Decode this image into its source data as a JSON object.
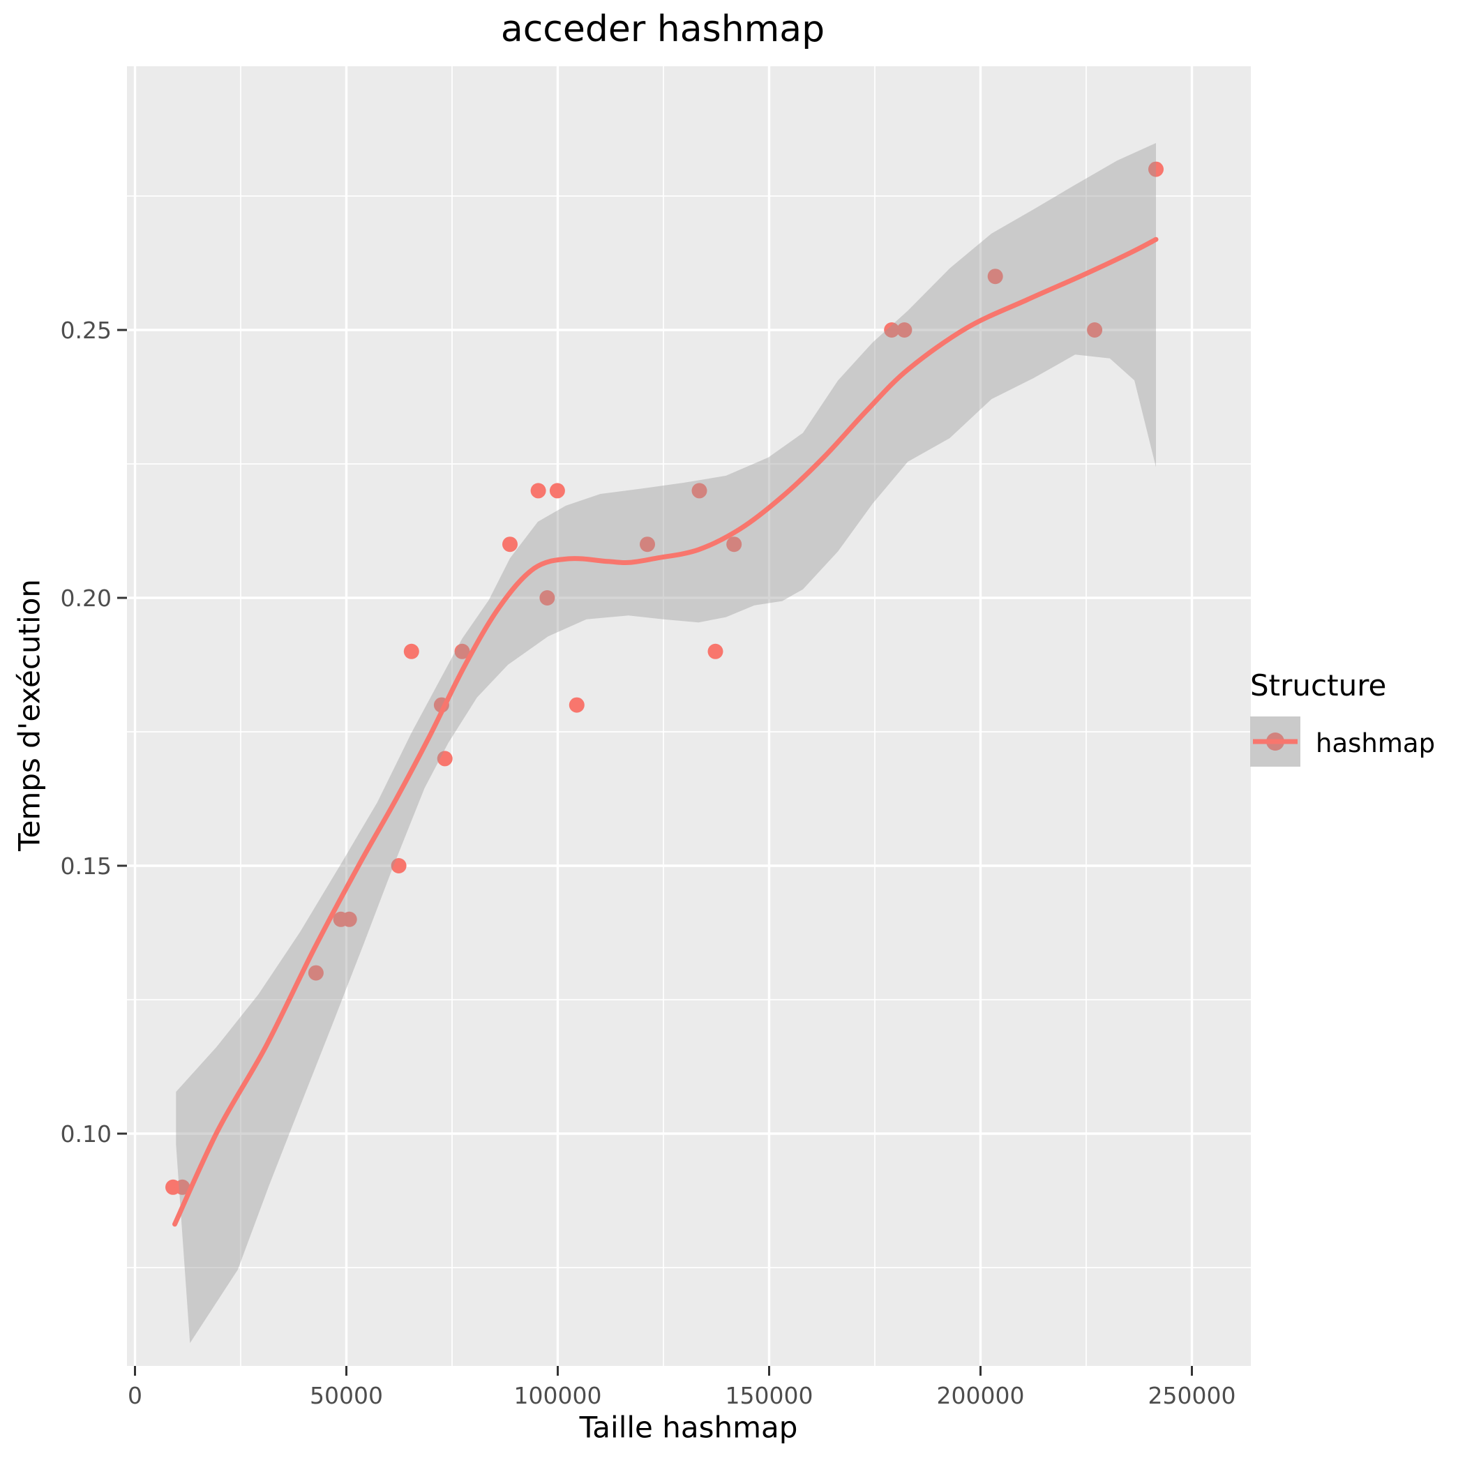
{
  "title": "acceder hashmap",
  "legend": {
    "title": "Structure",
    "items": [
      {
        "label": "hashmap",
        "color": "#F8766D"
      }
    ]
  },
  "colors": {
    "accent": "#F8766D",
    "panel_bg": "#EBEBEB",
    "grid": "#FFFFFF",
    "ribbon": "rgba(153,153,153,0.4)",
    "tick_label": "#4D4D4D",
    "tick_mark": "#333333",
    "key_bg": "#EBEBEB",
    "text": "#000000"
  },
  "chart_data": {
    "type": "scatter",
    "title": "acceder hashmap",
    "xlabel": "Taille hashmap",
    "ylabel": "Temps d'exécution",
    "xlim": [
      -1900,
      264000
    ],
    "ylim": [
      0.057,
      0.299
    ],
    "grid": "on",
    "legend_position": "right",
    "x_ticks": [
      {
        "v": 0,
        "l": "0"
      },
      {
        "v": 50000,
        "l": "50000"
      },
      {
        "v": 100000,
        "l": "100000"
      },
      {
        "v": 150000,
        "l": "150000"
      },
      {
        "v": 200000,
        "l": "200000"
      },
      {
        "v": 250000,
        "l": "250000"
      }
    ],
    "y_ticks": [
      {
        "v": 0.1,
        "l": "0.10"
      },
      {
        "v": 0.15,
        "l": "0.15"
      },
      {
        "v": 0.2,
        "l": "0.20"
      },
      {
        "v": 0.25,
        "l": "0.25"
      }
    ],
    "x_minor": [
      25000,
      75000,
      125000,
      175000,
      225000
    ],
    "y_minor": [
      0.075,
      0.125,
      0.175,
      0.225,
      0.275
    ],
    "series": [
      {
        "name": "hashmap",
        "color": "#F8766D",
        "points": [
          [
            9000,
            0.09
          ],
          [
            11200,
            0.09
          ],
          [
            42800,
            0.13
          ],
          [
            48700,
            0.14
          ],
          [
            50700,
            0.14
          ],
          [
            62400,
            0.15
          ],
          [
            65400,
            0.19
          ],
          [
            72500,
            0.18
          ],
          [
            73300,
            0.17
          ],
          [
            77400,
            0.19
          ],
          [
            88700,
            0.21
          ],
          [
            95400,
            0.22
          ],
          [
            97500,
            0.2
          ],
          [
            99900,
            0.22
          ],
          [
            104500,
            0.18
          ],
          [
            121200,
            0.21
          ],
          [
            133500,
            0.22
          ],
          [
            137300,
            0.19
          ],
          [
            141700,
            0.21
          ],
          [
            179000,
            0.25
          ],
          [
            182000,
            0.25
          ],
          [
            203500,
            0.26
          ],
          [
            227000,
            0.25
          ],
          [
            241500,
            0.28
          ]
        ]
      }
    ],
    "smooth": {
      "method": "loess",
      "line": [
        [
          9400,
          0.0831
        ],
        [
          19600,
          0.1006
        ],
        [
          30900,
          0.1162
        ],
        [
          42400,
          0.1345
        ],
        [
          52800,
          0.1499
        ],
        [
          61400,
          0.1619
        ],
        [
          69700,
          0.1742
        ],
        [
          77900,
          0.1872
        ],
        [
          86200,
          0.1983
        ],
        [
          94400,
          0.2055
        ],
        [
          102700,
          0.2073
        ],
        [
          111800,
          0.2068
        ],
        [
          117000,
          0.2066
        ],
        [
          123300,
          0.2074
        ],
        [
          133300,
          0.209
        ],
        [
          143200,
          0.2129
        ],
        [
          153100,
          0.2189
        ],
        [
          163000,
          0.2263
        ],
        [
          172900,
          0.2348
        ],
        [
          182800,
          0.2426
        ],
        [
          196800,
          0.2504
        ],
        [
          210900,
          0.2556
        ],
        [
          224100,
          0.2602
        ],
        [
          235700,
          0.2645
        ],
        [
          241500,
          0.2669
        ]
      ],
      "ribbon": [
        [
          9700,
          0.1078
        ],
        [
          19300,
          0.1162
        ],
        [
          29200,
          0.126
        ],
        [
          39100,
          0.1377
        ],
        [
          49000,
          0.1507
        ],
        [
          57300,
          0.1618
        ],
        [
          65400,
          0.1748
        ],
        [
          77400,
          0.1924
        ],
        [
          83700,
          0.1996
        ],
        [
          88700,
          0.2074
        ],
        [
          95300,
          0.2142
        ],
        [
          101900,
          0.2172
        ],
        [
          110100,
          0.2194
        ],
        [
          120000,
          0.2204
        ],
        [
          129900,
          0.2215
        ],
        [
          139800,
          0.2228
        ],
        [
          149800,
          0.2262
        ],
        [
          158000,
          0.2308
        ],
        [
          166300,
          0.2406
        ],
        [
          174500,
          0.2477
        ],
        [
          182800,
          0.2536
        ],
        [
          192700,
          0.2615
        ],
        [
          202600,
          0.268
        ],
        [
          212500,
          0.2725
        ],
        [
          222400,
          0.2771
        ],
        [
          232300,
          0.2816
        ],
        [
          241500,
          0.2849
        ],
        [
          241500,
          0.2244
        ],
        [
          236400,
          0.2406
        ],
        [
          230600,
          0.2447
        ],
        [
          222400,
          0.2454
        ],
        [
          212500,
          0.241
        ],
        [
          202600,
          0.2371
        ],
        [
          192700,
          0.2298
        ],
        [
          182800,
          0.2254
        ],
        [
          174500,
          0.2176
        ],
        [
          166300,
          0.2087
        ],
        [
          158000,
          0.2016
        ],
        [
          153100,
          0.1994
        ],
        [
          146500,
          0.1986
        ],
        [
          139800,
          0.1964
        ],
        [
          133300,
          0.1954
        ],
        [
          125000,
          0.196
        ],
        [
          116700,
          0.1967
        ],
        [
          106800,
          0.196
        ],
        [
          97700,
          0.1928
        ],
        [
          88200,
          0.1875
        ],
        [
          80900,
          0.1814
        ],
        [
          74100,
          0.1729
        ],
        [
          68500,
          0.1645
        ],
        [
          60900,
          0.1495
        ],
        [
          54000,
          0.1352
        ],
        [
          46600,
          0.1202
        ],
        [
          39100,
          0.1052
        ],
        [
          31700,
          0.0903
        ],
        [
          24300,
          0.0746
        ],
        [
          13000,
          0.0609
        ],
        [
          9700,
          0.098
        ]
      ]
    }
  }
}
